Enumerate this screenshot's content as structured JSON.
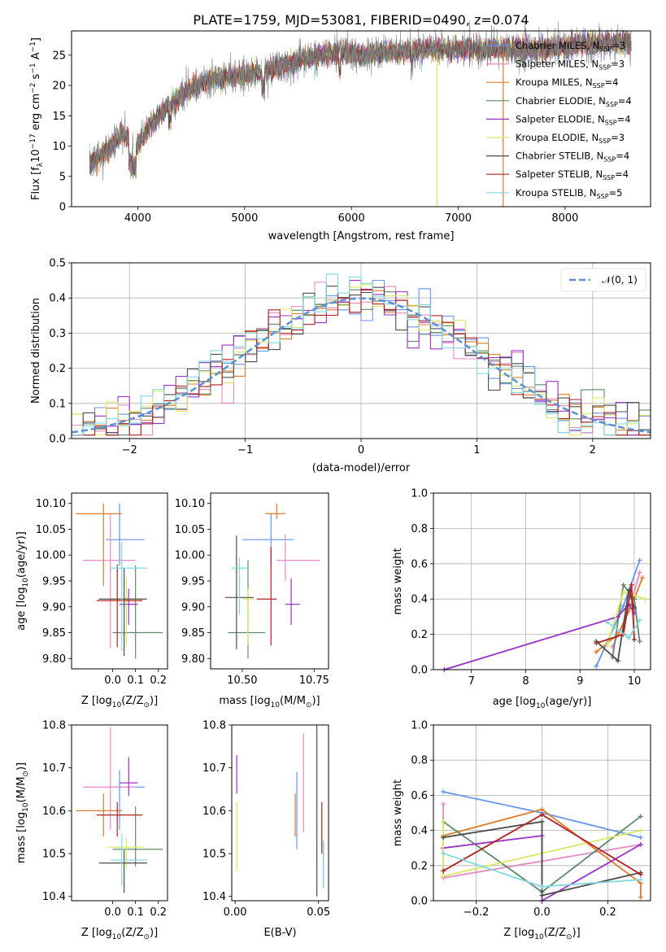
{
  "title": "PLATE=1759, MJD=53081, FIBERID=0490, z=0.074",
  "models": [
    {
      "name": "Chabrier MILES",
      "nssp": "3",
      "color": "#6495ed"
    },
    {
      "name": "Salpeter MILES",
      "nssp": "3",
      "color": "#e78ac3"
    },
    {
      "name": "Kroupa MILES",
      "nssp": "4",
      "color": "#e07b28"
    },
    {
      "name": "Chabrier ELODIE",
      "nssp": "4",
      "color": "#5f8a6a"
    },
    {
      "name": "Salpeter ELODIE",
      "nssp": "4",
      "color": "#9b30c8"
    },
    {
      "name": "Kroupa ELODIE",
      "nssp": "3",
      "color": "#d8e860"
    },
    {
      "name": "Chabrier STELIB",
      "nssp": "4",
      "color": "#4d4d4d"
    },
    {
      "name": "Salpeter STELIB",
      "nssp": "4",
      "color": "#b22222"
    },
    {
      "name": "Kroupa STELIB",
      "nssp": "5",
      "color": "#80d8e0"
    }
  ],
  "chart_data": [
    {
      "id": "spectrum",
      "type": "line",
      "xlabel": "wavelength [Angstrom, rest frame]",
      "ylabel": "Flux [f_λ 10^-17 erg cm^-2 s^-1 A^-1]",
      "xlim": [
        3380,
        8800
      ],
      "ylim": [
        0,
        29
      ],
      "xticks": [
        4000,
        5000,
        6000,
        7000,
        8000
      ],
      "yticks": [
        0,
        5,
        10,
        15,
        20,
        25
      ],
      "grid": false,
      "legend": "right",
      "envelope": {
        "x": [
          3550,
          3700,
          3850,
          4000,
          4100,
          4300,
          4500,
          4700,
          4900,
          5100,
          5300,
          5500,
          5700,
          5900,
          6100,
          6300,
          6500,
          6700,
          6900,
          7100,
          7300,
          7500,
          7800,
          8200,
          8600
        ],
        "y": [
          7,
          9,
          12,
          10,
          13,
          17,
          19.5,
          21,
          21.5,
          22,
          23,
          24,
          25,
          25.5,
          25,
          25.5,
          25.5,
          26,
          26,
          26,
          26,
          26,
          26,
          27,
          27
        ]
      },
      "features": [
        {
          "x": 6800,
          "y": 0,
          "label": ""
        },
        {
          "x": 7420,
          "y": 0,
          "label": ""
        }
      ]
    },
    {
      "id": "residuals",
      "type": "line",
      "xlabel": "(data-model)/error",
      "ylabel": "Normed distribution",
      "xlim": [
        -2.5,
        2.5
      ],
      "ylim": [
        0,
        0.5
      ],
      "xticks": [
        -2,
        -1,
        0,
        1,
        2
      ],
      "yticks": [
        0.0,
        0.1,
        0.2,
        0.3,
        0.4,
        0.5
      ],
      "grid": true,
      "legend": "top-right",
      "series": [
        {
          "name": "𝒩(0, 1)",
          "function": "normal_pdf",
          "mu": 0,
          "sigma": 1
        }
      ],
      "histogram_bins": [
        -2.5,
        -2.4,
        -2.3,
        -2.2,
        -2.1,
        -2.0,
        -1.9,
        -1.8,
        -1.7,
        -1.6,
        -1.5,
        -1.4,
        -1.3,
        -1.2,
        -1.1,
        -1.0,
        -0.9,
        -0.8,
        -0.7,
        -0.6,
        -0.5,
        -0.4,
        -0.3,
        -0.2,
        -0.1,
        0.0,
        0.1,
        0.2,
        0.3,
        0.4,
        0.5,
        0.6,
        0.7,
        0.8,
        0.9,
        1.0,
        1.1,
        1.2,
        1.3,
        1.4,
        1.5,
        1.6,
        1.7,
        1.8,
        1.9,
        2.0,
        2.1,
        2.2,
        2.3,
        2.4,
        2.5
      ]
    },
    {
      "id": "age_vs_Z",
      "type": "scatter",
      "xlabel": "Z [log10(Z/Z⊙)]",
      "ylabel": "age  [log10(age/yr)]",
      "xlim": [
        -0.18,
        0.24
      ],
      "ylim": [
        9.78,
        10.12
      ],
      "xticks": [
        0.0,
        0.1,
        0.2
      ],
      "yticks": [
        9.8,
        9.85,
        9.9,
        9.95,
        10.0,
        10.05,
        10.1
      ],
      "grid": false,
      "points": [
        {
          "x": 0.03,
          "y": 10.03,
          "xerr": [
            0.06,
            0.11
          ],
          "yerr": [
            0.05,
            0.07
          ],
          "color": "#6495ed"
        },
        {
          "x": -0.01,
          "y": 9.99,
          "xerr": [
            0.12,
            0.11
          ],
          "yerr": [
            0.17,
            0.09
          ],
          "color": "#e78ac3"
        },
        {
          "x": -0.04,
          "y": 10.08,
          "xerr": [
            0.12,
            0.08
          ],
          "yerr": [
            0.14,
            0.02
          ],
          "color": "#e07b28"
        },
        {
          "x": 0.1,
          "y": 9.85,
          "xerr": [
            0.1,
            0.12
          ],
          "yerr": [
            0.05,
            0.13
          ],
          "color": "#5f8a6a"
        },
        {
          "x": 0.07,
          "y": 9.905,
          "xerr": [
            0.04,
            0.04
          ],
          "yerr": [
            0.04,
            0.03
          ],
          "color": "#9b30c8"
        },
        {
          "x": 0.06,
          "y": 9.915,
          "xerr": [
            0.08,
            0.08
          ],
          "yerr": [
            0.09,
            0.04
          ],
          "color": "#d8e860"
        },
        {
          "x": 0.05,
          "y": 9.915,
          "xerr": [
            0.11,
            0.1
          ],
          "yerr": [
            0.11,
            0.06
          ],
          "color": "#4d4d4d"
        },
        {
          "x": 0.02,
          "y": 9.912,
          "xerr": [
            0.09,
            0.11
          ],
          "yerr": [
            0.09,
            0.07
          ],
          "color": "#b22222"
        },
        {
          "x": 0.04,
          "y": 9.975,
          "xerr": [
            0.05,
            0.11
          ],
          "yerr": [
            0.16,
            0.05
          ],
          "color": "#80d8e0"
        }
      ]
    },
    {
      "id": "age_vs_mass",
      "type": "scatter",
      "xlabel": "mass [log10(M/M⊙)]",
      "ylabel": "",
      "xlim": [
        10.39,
        10.8
      ],
      "ylim": [
        9.78,
        10.12
      ],
      "xticks": [
        10.5,
        10.75
      ],
      "yticks": [
        9.8,
        9.85,
        9.9,
        9.95,
        10.0,
        10.05,
        10.1
      ],
      "grid": false,
      "points": [
        {
          "x": 10.6,
          "y": 10.03,
          "xerr": [
            0.1,
            0.08
          ],
          "yerr": [
            0.05,
            0.05
          ],
          "color": "#6495ed"
        },
        {
          "x": 10.65,
          "y": 9.99,
          "xerr": [
            0.03,
            0.12
          ],
          "yerr": [
            0.04,
            0.05
          ],
          "color": "#e78ac3"
        },
        {
          "x": 10.62,
          "y": 10.08,
          "xerr": [
            0.04,
            0.03
          ],
          "yerr": [
            0.01,
            0.02
          ],
          "color": "#e07b28"
        },
        {
          "x": 10.52,
          "y": 9.85,
          "xerr": [
            0.07,
            0.06
          ],
          "yerr": [
            0.05,
            0.14
          ],
          "color": "#5f8a6a"
        },
        {
          "x": 10.67,
          "y": 9.905,
          "xerr": [
            0.02,
            0.03
          ],
          "yerr": [
            0.04,
            0.05
          ],
          "color": "#9b30c8"
        },
        {
          "x": 10.52,
          "y": 9.915,
          "xerr": [
            0.02,
            0.02
          ],
          "yerr": [
            0.09,
            0.02
          ],
          "color": "#d8e860"
        },
        {
          "x": 10.48,
          "y": 9.918,
          "xerr": [
            0.04,
            0.06
          ],
          "yerr": [
            0.1,
            0.12
          ],
          "color": "#4d4d4d"
        },
        {
          "x": 10.6,
          "y": 9.915,
          "xerr": [
            0.05,
            0.02
          ],
          "yerr": [
            0.09,
            0.1
          ],
          "color": "#b22222"
        },
        {
          "x": 10.49,
          "y": 9.975,
          "xerr": [
            0.03,
            0.03
          ],
          "yerr": [
            0.09,
            0.02
          ],
          "color": "#80d8e0"
        }
      ]
    },
    {
      "id": "weight_vs_age",
      "type": "line",
      "xlabel": "age  [log10(age/yr)]",
      "ylabel": "mass weight",
      "xlim": [
        6.3,
        10.3
      ],
      "ylim": [
        0,
        1
      ],
      "xticks": [
        7,
        8,
        9,
        10
      ],
      "yticks": [
        0.0,
        0.2,
        0.4,
        0.6,
        0.8,
        1.0
      ],
      "grid": true,
      "series": [
        {
          "color": "#6495ed",
          "points": [
            [
              9.3,
              0.02
            ],
            [
              9.8,
              0.36
            ],
            [
              10.1,
              0.62
            ]
          ]
        },
        {
          "color": "#e78ac3",
          "points": [
            [
              9.6,
              0.13
            ],
            [
              9.9,
              0.33
            ],
            [
              10.1,
              0.55
            ]
          ]
        },
        {
          "color": "#e07b28",
          "points": [
            [
              9.3,
              0.1
            ],
            [
              9.7,
              0.2
            ],
            [
              10.0,
              0.4
            ],
            [
              10.15,
              0.52
            ]
          ]
        },
        {
          "color": "#5f8a6a",
          "points": [
            [
              9.6,
              0.07
            ],
            [
              9.8,
              0.48
            ],
            [
              10.0,
              0.4
            ],
            [
              10.1,
              0.16
            ]
          ]
        },
        {
          "color": "#9b30c8",
          "points": [
            [
              6.5,
              0.0
            ],
            [
              9.7,
              0.3
            ],
            [
              9.9,
              0.37
            ],
            [
              10.0,
              0.32
            ]
          ]
        },
        {
          "color": "#d8e860",
          "points": [
            [
              9.5,
              0.14
            ],
            [
              9.8,
              0.44
            ],
            [
              10.2,
              0.4
            ]
          ]
        },
        {
          "color": "#4d4d4d",
          "points": [
            [
              9.3,
              0.16
            ],
            [
              9.7,
              0.05
            ],
            [
              9.9,
              0.45
            ],
            [
              10.0,
              0.35
            ]
          ]
        },
        {
          "color": "#b22222",
          "points": [
            [
              9.3,
              0.15
            ],
            [
              9.8,
              0.2
            ],
            [
              9.95,
              0.48
            ],
            [
              10.0,
              0.17
            ]
          ]
        },
        {
          "color": "#80d8e0",
          "points": [
            [
              9.5,
              0.27
            ],
            [
              9.9,
              0.18
            ],
            [
              10.1,
              0.28
            ]
          ]
        }
      ]
    },
    {
      "id": "mass_vs_Z",
      "type": "scatter",
      "xlabel": "Z [log10(Z/Z⊙)]",
      "ylabel": "mass [log10(M/M⊙)]",
      "xlim": [
        -0.18,
        0.24
      ],
      "ylim": [
        10.39,
        10.8
      ],
      "xticks": [
        0.0,
        0.1,
        0.2
      ],
      "yticks": [
        10.4,
        10.5,
        10.6,
        10.7,
        10.8
      ],
      "grid": false,
      "points": [
        {
          "x": 0.03,
          "y": 10.655,
          "xerr": [
            0.06,
            0.11
          ],
          "yerr": [
            0.1,
            0.04
          ],
          "color": "#6495ed"
        },
        {
          "x": -0.01,
          "y": 10.655,
          "xerr": [
            0.12,
            0.11
          ],
          "yerr": [
            0.1,
            0.14
          ],
          "color": "#e78ac3"
        },
        {
          "x": -0.04,
          "y": 10.6,
          "xerr": [
            0.12,
            0.08
          ],
          "yerr": [
            0.06,
            0.04
          ],
          "color": "#e07b28"
        },
        {
          "x": 0.1,
          "y": 10.51,
          "xerr": [
            0.1,
            0.12
          ],
          "yerr": [
            0.04,
            0.1
          ],
          "color": "#5f8a6a"
        },
        {
          "x": 0.07,
          "y": 10.665,
          "xerr": [
            0.04,
            0.04
          ],
          "yerr": [
            0.03,
            0.06
          ],
          "color": "#9b30c8"
        },
        {
          "x": 0.06,
          "y": 10.515,
          "xerr": [
            0.08,
            0.08
          ],
          "yerr": [
            0.05,
            0.02
          ],
          "color": "#d8e860"
        },
        {
          "x": 0.05,
          "y": 10.478,
          "xerr": [
            0.11,
            0.1
          ],
          "yerr": [
            0.07,
            0.03
          ],
          "color": "#4d4d4d"
        },
        {
          "x": 0.02,
          "y": 10.59,
          "xerr": [
            0.09,
            0.11
          ],
          "yerr": [
            0.05,
            0.03
          ],
          "color": "#b22222"
        },
        {
          "x": 0.04,
          "y": 10.485,
          "xerr": [
            0.05,
            0.11
          ],
          "yerr": [
            0.06,
            0.06
          ],
          "color": "#80d8e0"
        }
      ]
    },
    {
      "id": "mass_vs_ebv",
      "type": "scatter",
      "xlabel": "E(B-V)",
      "ylabel": "",
      "xlim": [
        -0.002,
        0.056
      ],
      "ylim": [
        10.39,
        10.8
      ],
      "xticks": [
        0.0,
        0.05
      ],
      "yticks": [
        10.4,
        10.5,
        10.6,
        10.7,
        10.8
      ],
      "grid": false,
      "points": [
        {
          "x": 0.037,
          "y": 10.6,
          "yerr": [
            0.09,
            0.09
          ],
          "color": "#6495ed"
        },
        {
          "x": 0.041,
          "y": 10.67,
          "yerr": [
            0.12,
            0.11
          ],
          "color": "#e78ac3"
        },
        {
          "x": 0.036,
          "y": 10.6,
          "yerr": [
            0.06,
            0.04
          ],
          "color": "#e07b28"
        },
        {
          "x": 0.053,
          "y": 10.47,
          "yerr": [
            0.05,
            0.06
          ],
          "color": "#5f8a6a"
        },
        {
          "x": 0.001,
          "y": 10.68,
          "yerr": [
            0.04,
            0.05
          ],
          "color": "#9b30c8"
        },
        {
          "x": 0.001,
          "y": 10.52,
          "yerr": [
            0.06,
            0.1
          ],
          "color": "#d8e860"
        },
        {
          "x": 0.049,
          "y": 10.6,
          "yerr": [
            0.2,
            0.2
          ],
          "color": "#4d4d4d"
        },
        {
          "x": 0.052,
          "y": 10.56,
          "yerr": [
            0.06,
            0.06
          ],
          "color": "#b22222"
        },
        {
          "x": 0.053,
          "y": 10.48,
          "yerr": [
            0.06,
            0.05
          ],
          "color": "#80d8e0"
        }
      ]
    },
    {
      "id": "weight_vs_Z",
      "type": "line",
      "xlabel": "Z [log10(Z/Z⊙)]",
      "ylabel": "mass weight",
      "xlim": [
        -0.33,
        0.33
      ],
      "ylim": [
        0,
        1
      ],
      "xticks": [
        -0.2,
        0.0,
        0.2
      ],
      "yticks": [
        0.0,
        0.2,
        0.4,
        0.6,
        0.8,
        1.0
      ],
      "grid": true,
      "series": [
        {
          "color": "#6495ed",
          "points": [
            [
              -0.3,
              0.62
            ],
            [
              0.0,
              0.5
            ],
            [
              0.3,
              0.36
            ]
          ]
        },
        {
          "color": "#e78ac3",
          "points": [
            [
              -0.3,
              0.55
            ],
            [
              -0.3,
              0.13
            ],
            [
              0.3,
              0.32
            ]
          ]
        },
        {
          "color": "#e07b28",
          "points": [
            [
              -0.3,
              0.37
            ],
            [
              0.0,
              0.52
            ],
            [
              0.3,
              0.1
            ],
            [
              0.3,
              0.02
            ]
          ]
        },
        {
          "color": "#5f8a6a",
          "points": [
            [
              -0.3,
              0.45
            ],
            [
              0.0,
              0.05
            ],
            [
              0.3,
              0.48
            ]
          ]
        },
        {
          "color": "#9b30c8",
          "points": [
            [
              -0.3,
              0.3
            ],
            [
              0.0,
              0.37
            ],
            [
              0.0,
              0.0
            ],
            [
              0.3,
              0.32
            ]
          ]
        },
        {
          "color": "#d8e860",
          "points": [
            [
              -0.3,
              0.45
            ],
            [
              -0.3,
              0.14
            ],
            [
              0.3,
              0.4
            ]
          ]
        },
        {
          "color": "#4d4d4d",
          "points": [
            [
              -0.3,
              0.36
            ],
            [
              0.0,
              0.45
            ],
            [
              0.0,
              0.03
            ],
            [
              0.3,
              0.16
            ]
          ]
        },
        {
          "color": "#b22222",
          "points": [
            [
              -0.3,
              0.17
            ],
            [
              0.0,
              0.49
            ],
            [
              0.3,
              0.15
            ]
          ]
        },
        {
          "color": "#80d8e0",
          "points": [
            [
              -0.3,
              0.27
            ],
            [
              0.0,
              0.08
            ],
            [
              0.3,
              0.12
            ]
          ]
        }
      ]
    }
  ]
}
